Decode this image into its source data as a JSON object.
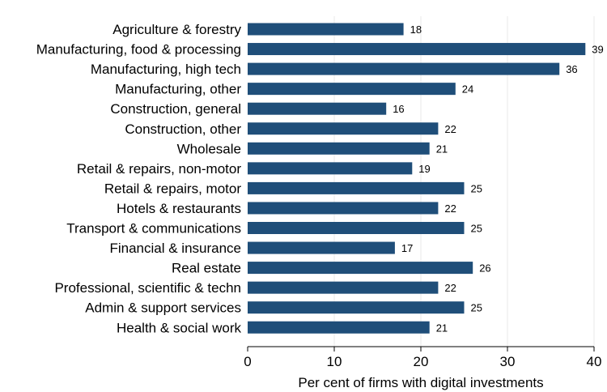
{
  "chart_data": {
    "type": "bar",
    "orientation": "horizontal",
    "title": "",
    "xlabel": "Per cent of firms with digital investments",
    "ylabel": "",
    "xlim": [
      0,
      40
    ],
    "xticks": [
      0,
      10,
      20,
      30,
      40
    ],
    "grid": true,
    "bar_color": "#1f4e79",
    "categories": [
      "Agriculture & forestry",
      "Manufacturing, food & processing",
      "Manufacturing, high tech",
      "Manufacturing, other",
      "Construction, general",
      "Construction, other",
      "Wholesale",
      "Retail & repairs, non-motor",
      "Retail & repairs, motor",
      "Hotels & restaurants",
      "Transport & communications",
      "Financial & insurance",
      "Real estate",
      "Professional, scientific & techn",
      "Admin & support services",
      "Health & social work"
    ],
    "values": [
      18,
      39,
      36,
      24,
      16,
      22,
      21,
      19,
      25,
      22,
      25,
      17,
      26,
      22,
      25,
      21
    ]
  }
}
